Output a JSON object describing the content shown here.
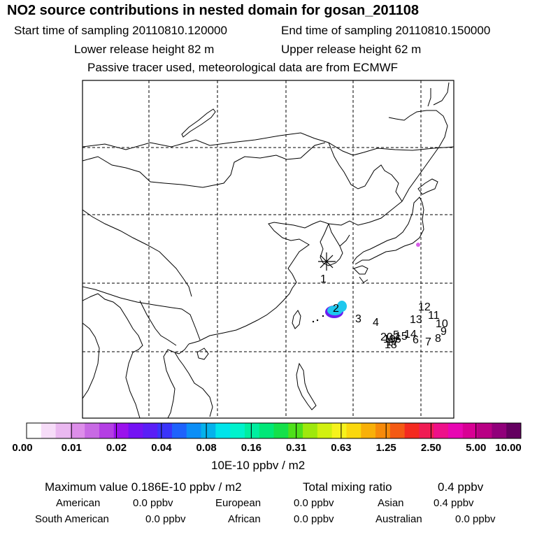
{
  "header": {
    "title": "NO2 source contributions in nested domain for gosan_201108",
    "start_label": "Start time of sampling 20110810.120000",
    "end_label": "End time of sampling 20110810.150000",
    "lower_height": "Lower release height   82 m",
    "upper_height": "Upper release height   62 m",
    "note": "Passive tracer used, meteorological data are from ECMWF"
  },
  "map": {
    "marker_labels": [
      "1",
      "2",
      "3",
      "4",
      "5",
      "6",
      "7",
      "8",
      "9",
      "10",
      "11",
      "12",
      "13",
      "14",
      "15",
      "16",
      "17",
      "18",
      "19",
      "20"
    ]
  },
  "colorbar": {
    "colors": [
      "#ffffff",
      "#f6dcf8",
      "#eab8f0",
      "#dd8eea",
      "#c86ae4",
      "#b43ee4",
      "#9a12ec",
      "#7412f4",
      "#5a1ef6",
      "#3a34fa",
      "#1e62fc",
      "#0c8ef6",
      "#04b2ec",
      "#00e4ea",
      "#00f2cc",
      "#00eea0",
      "#00e878",
      "#14e04a",
      "#4ee01a",
      "#9ee80c",
      "#d2f010",
      "#f6f21c",
      "#fad80e",
      "#f8b008",
      "#f68a0a",
      "#f45a14",
      "#f42a20",
      "#f01c54",
      "#ee108a",
      "#e806b2",
      "#d80094",
      "#b80084",
      "#90007a",
      "#640060"
    ],
    "labels": [
      "0.00",
      "0.01",
      "0.02",
      "0.04",
      "0.08",
      "0.16",
      "0.31",
      "0.63",
      "1.25",
      "2.50",
      "5.00",
      "10.00"
    ],
    "unit": "10E-10 ppbv / m2"
  },
  "stats": {
    "max_label": "Maximum value  0.186E-10 ppbv / m2",
    "total_label": "Total mixing ratio",
    "total_value": "0.4 ppbv",
    "regions": [
      {
        "name": "American",
        "value": "0.0 ppbv"
      },
      {
        "name": "European",
        "value": "0.0 ppbv"
      },
      {
        "name": "Asian",
        "value": "0.4 ppbv"
      },
      {
        "name": "South American",
        "value": "0.0 ppbv"
      },
      {
        "name": "African",
        "value": "0.0 ppbv"
      },
      {
        "name": "Australian",
        "value": "0.0 ppbv"
      }
    ]
  }
}
